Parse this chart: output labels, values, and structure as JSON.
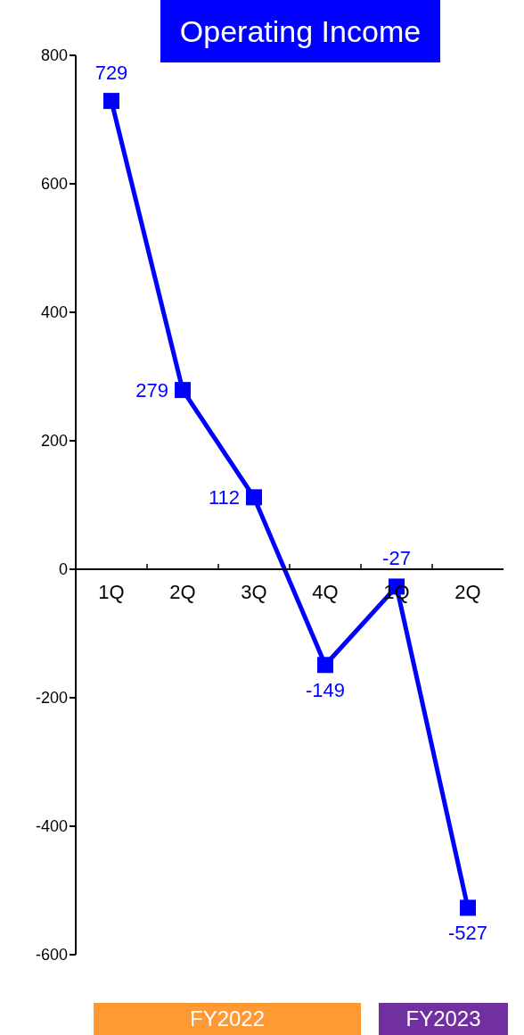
{
  "chart_data": {
    "type": "line",
    "title": "Operating Income",
    "categories": [
      "1Q",
      "2Q",
      "3Q",
      "4Q",
      "1Q",
      "2Q"
    ],
    "series": [
      {
        "color": "#0000ff",
        "values": [
          729,
          279,
          112,
          -149,
          -27,
          -527
        ]
      }
    ],
    "ylim": [
      -600,
      800
    ],
    "yticks": [
      -600,
      -400,
      -200,
      0,
      200,
      400,
      600,
      800
    ],
    "grid": false,
    "legend": false,
    "marker": "square",
    "line_style": "solid",
    "data_labels": true,
    "annotations": [
      "FY2022",
      "FY2023"
    ]
  }
}
